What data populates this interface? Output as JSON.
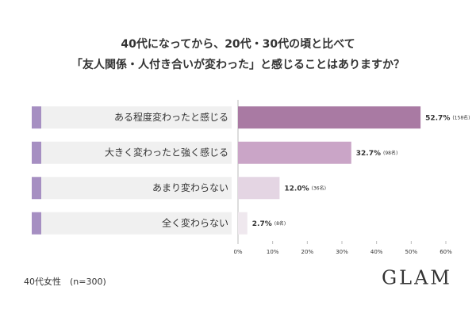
{
  "chart_data": {
    "type": "bar",
    "orientation": "horizontal",
    "title": "40代になってから、20代・30代の頃と比べて",
    "subtitle": "「友人関係・人付き合いが変わった」と感じることはありますか？",
    "categories": [
      "ある程度変わったと感じる",
      "大きく変わったと強く感じる",
      "あまり変わらない",
      "全く変わらない"
    ],
    "values": [
      52.7,
      32.7,
      12.0,
      2.7
    ],
    "value_labels": [
      "52.7%",
      "32.7%",
      "12.0%",
      "2.7%"
    ],
    "count_labels": [
      "(158名)",
      "(98名)",
      "(36名)",
      "(8名)"
    ],
    "colors": [
      "#a97aa3",
      "#caa5c7",
      "#e4d5e3",
      "#efe8ee"
    ],
    "xlim": [
      0,
      60
    ],
    "xticks": [
      {
        "value": 0,
        "label": "0%"
      },
      {
        "value": 10,
        "label": "10%"
      },
      {
        "value": 20,
        "label": "20%"
      },
      {
        "value": 30,
        "label": "30%"
      },
      {
        "value": 40,
        "label": "40%"
      },
      {
        "value": 50,
        "label": "50%"
      },
      {
        "value": 60,
        "label": "60%"
      }
    ],
    "footnote": "40代女性　(n=300)",
    "brand": "GLAM"
  }
}
